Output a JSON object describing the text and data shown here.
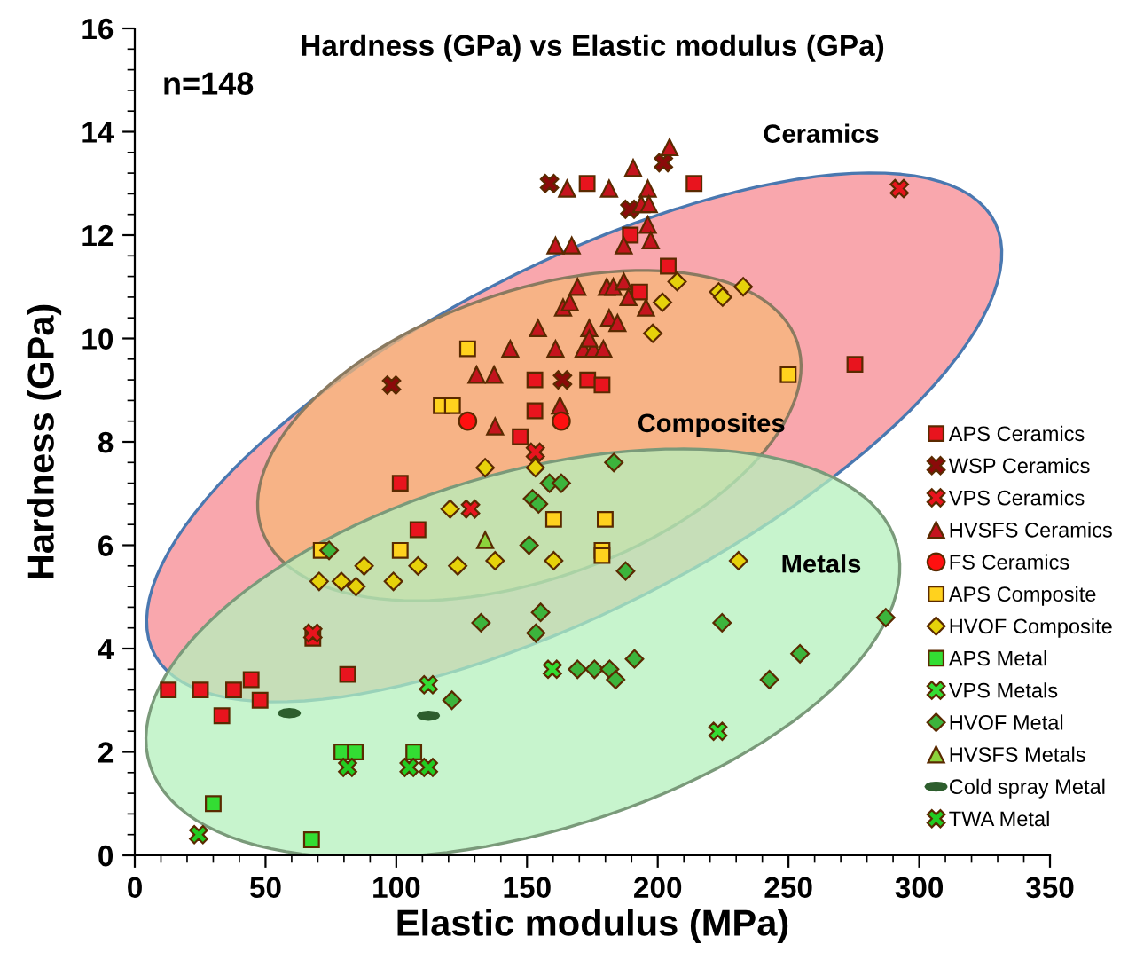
{
  "chart_data": {
    "type": "scatter",
    "title": "Hardness (GPa) vs Elastic modulus (GPa)",
    "xlabel": "Elastic modulus (MPa)",
    "ylabel": "Hardness (GPa)",
    "xlim": [
      0,
      350
    ],
    "ylim": [
      0,
      16
    ],
    "xticks": [
      0,
      50,
      100,
      150,
      200,
      250,
      300,
      350
    ],
    "yticks": [
      0,
      2,
      4,
      6,
      8,
      10,
      12,
      14,
      16
    ],
    "grid": false,
    "legend": "right",
    "annotations": [
      "n=148",
      "Ceramics",
      "Composites",
      "Metals"
    ],
    "series": [
      {
        "name": "APS Ceramics",
        "color": "#e8141e",
        "marker": "square",
        "x": [
          173,
          213.9,
          189.5,
          204,
          193.1,
          153,
          173.2,
          178.7,
          153,
          147.4,
          275.4,
          101.5,
          108.3,
          68.1,
          81.4,
          12.8,
          25.1,
          37.8,
          44.5,
          47.9,
          33.3
        ],
        "values": [
          13.0,
          13.0,
          12.0,
          11.4,
          10.9,
          9.2,
          9.2,
          9.1,
          8.6,
          8.1,
          9.5,
          7.2,
          6.3,
          4.2,
          3.5,
          3.2,
          3.2,
          3.2,
          3.4,
          3.0,
          2.7
        ]
      },
      {
        "name": "WSP Ceramics",
        "color": "#8b0a0a",
        "marker": "cross",
        "x": [
          158.6,
          202.2,
          189.3,
          98.2,
          163.6
        ],
        "values": [
          13.0,
          13.4,
          12.5,
          9.1,
          9.2
        ]
      },
      {
        "name": "VPS Ceramics",
        "color": "#e8141e",
        "marker": "cross",
        "x": [
          292.4,
          153.2,
          128.4,
          68.1
        ],
        "values": [
          12.9,
          7.8,
          6.7,
          4.3
        ]
      },
      {
        "name": "HVSFS Ceramics",
        "color": "#c4141e",
        "marker": "triangle",
        "x": [
          165.3,
          160.9,
          167.1,
          154.2,
          143.6,
          160.9,
          130.7,
          137.4,
          162.6,
          137.8,
          169.3,
          180.5,
          163.8,
          166.4,
          204.5,
          190.6,
          181.4,
          196.2,
          193.7,
          196.6,
          196.2,
          197.3,
          187,
          183,
          187,
          188.8,
          195.5,
          181.4,
          184.6,
          173.8,
          171.6,
          175.4,
          179.2,
          173.8
        ],
        "values": [
          12.9,
          11.8,
          11.8,
          10.2,
          9.8,
          9.8,
          9.3,
          9.3,
          8.7,
          8.3,
          11.0,
          11.0,
          10.6,
          10.7,
          13.7,
          13.3,
          12.9,
          12.9,
          12.6,
          12.6,
          12.2,
          11.9,
          11.8,
          11.0,
          11.1,
          10.8,
          10.6,
          10.4,
          10.3,
          10.2,
          9.8,
          9.8,
          9.8,
          10.0
        ]
      },
      {
        "name": "FS Ceramics",
        "color": "#ff1010",
        "marker": "circle",
        "x": [
          127.3,
          163.1
        ],
        "values": [
          8.4,
          8.4
        ]
      },
      {
        "name": "APS Composite",
        "color": "#ffd21e",
        "marker": "square",
        "x": [
          127.3,
          117.2,
          121.5,
          249.9,
          160.2,
          101.5,
          71.3,
          179.9,
          178.7,
          178.7
        ],
        "values": [
          9.8,
          8.7,
          8.7,
          9.3,
          6.5,
          5.9,
          5.9,
          6.5,
          5.9,
          5.8
        ]
      },
      {
        "name": "HVOF Composite",
        "color": "#e6d20a",
        "marker": "diamond",
        "x": [
          207.4,
          201.8,
          223.3,
          224.8,
          232.7,
          198.1,
          134,
          153.2,
          120.6,
          70.5,
          79,
          84.6,
          87.7,
          98.9,
          108.3,
          123.5,
          137.8,
          160.2,
          230.9
        ],
        "values": [
          11.1,
          10.7,
          10.9,
          10.8,
          11.0,
          10.1,
          7.5,
          7.5,
          6.7,
          5.3,
          5.3,
          5.2,
          5.6,
          5.3,
          5.6,
          5.6,
          5.7,
          5.7,
          5.7
        ]
      },
      {
        "name": "APS Metal",
        "color": "#33dd33",
        "marker": "square",
        "x": [
          79.2,
          84.3,
          106.7,
          30,
          67.6
        ],
        "values": [
          2.0,
          2.0,
          2.0,
          1.0,
          0.3
        ]
      },
      {
        "name": "VPS Metals",
        "color": "#33dd33",
        "marker": "cross",
        "x": [
          112.3,
          159.7,
          223
        ],
        "values": [
          3.3,
          3.6,
          2.4
        ]
      },
      {
        "name": "HVOF Metal",
        "color": "#3cb43c",
        "marker": "diamond",
        "x": [
          158.6,
          163.1,
          152.1,
          154.4,
          183.2,
          150.8,
          74.3,
          132.4,
          155.2,
          153.4,
          121.3,
          169.3,
          175.8,
          181.6,
          183.9,
          191.1,
          187.7,
          224.6,
          287.2,
          254.4,
          242.7
        ],
        "values": [
          7.2,
          7.2,
          6.9,
          6.8,
          7.6,
          6.0,
          5.9,
          4.5,
          4.7,
          4.3,
          3.0,
          3.6,
          3.6,
          3.6,
          3.4,
          3.8,
          5.5,
          4.5,
          4.6,
          3.9,
          3.4
        ]
      },
      {
        "name": "HVSFS Metals",
        "color": "#8cd23c",
        "marker": "triangle",
        "x": [
          134
        ],
        "values": [
          6.1
        ]
      },
      {
        "name": "Cold spray Metal",
        "color": "#2e5e2e",
        "x": [
          59.1,
          112.3
        ],
        "values": [
          2.75,
          2.7
        ]
      },
      {
        "name": "TWA Metal",
        "color": "#22cc22",
        "marker": "cross",
        "x": [
          81.4,
          104.9,
          112.3,
          24.4
        ],
        "values": [
          1.7,
          1.7,
          1.7,
          0.4
        ]
      }
    ]
  }
}
